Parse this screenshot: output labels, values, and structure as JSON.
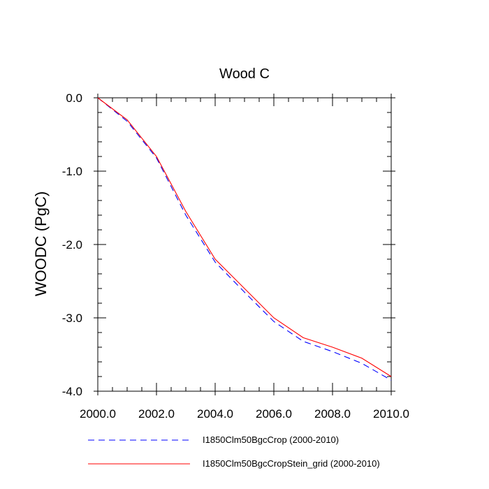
{
  "chart_data": {
    "type": "line",
    "title": "Wood C",
    "xlabel": "",
    "ylabel": "WOODC  (PgC)",
    "xlim": [
      2000,
      2010
    ],
    "ylim": [
      -4,
      0
    ],
    "xticks": [
      2000,
      2002,
      2004,
      2006,
      2008,
      2010
    ],
    "xtick_labels": [
      "2000.0",
      "2002.0",
      "2004.0",
      "2006.0",
      "2008.0",
      "2010.0"
    ],
    "yticks": [
      0,
      -1,
      -2,
      -3,
      -4
    ],
    "ytick_labels": [
      "0.0",
      "-1.0",
      "-2.0",
      "-3.0",
      "-4.0"
    ],
    "grid": false,
    "legend_position": "bottom",
    "x": [
      2000,
      2001,
      2002,
      2003,
      2004,
      2005,
      2006,
      2007,
      2008,
      2009,
      2010
    ],
    "series": [
      {
        "name": "I1850Clm50BgcCrop (2000-2010)",
        "color": "#0000ff",
        "dash": "dashed",
        "values": [
          0.0,
          -0.32,
          -0.82,
          -1.6,
          -2.24,
          -2.65,
          -3.05,
          -3.32,
          -3.46,
          -3.62,
          -3.85
        ]
      },
      {
        "name": "I1850Clm50BgcCropStein_grid (2000-2010)",
        "color": "#ff0000",
        "dash": "solid",
        "values": [
          0.0,
          -0.3,
          -0.8,
          -1.55,
          -2.2,
          -2.6,
          -3.0,
          -3.27,
          -3.4,
          -3.55,
          -3.8
        ]
      }
    ]
  }
}
